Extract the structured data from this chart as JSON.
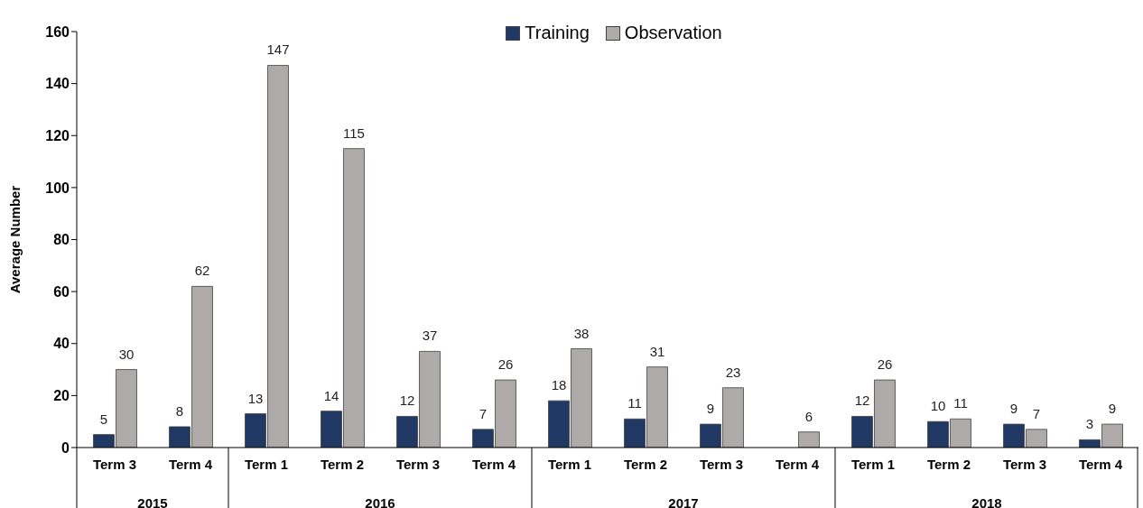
{
  "chart_data": {
    "type": "bar",
    "ylabel": "Average Number",
    "categories": [
      "Term 3",
      "Term 4",
      "Term 1",
      "Term 2",
      "Term 3",
      "Term 4",
      "Term 1",
      "Term 2",
      "Term 3",
      "Term 4",
      "Term 1",
      "Term 2",
      "Term 3",
      "Term 4"
    ],
    "series": [
      {
        "name": "Training",
        "color": "#203864",
        "values": [
          5,
          8,
          13,
          14,
          12,
          7,
          18,
          11,
          9,
          null,
          12,
          10,
          9,
          3
        ]
      },
      {
        "name": "Observation",
        "color": "#aeaaaa",
        "values": [
          30,
          62,
          147,
          115,
          37,
          26,
          38,
          31,
          23,
          6,
          26,
          11,
          7,
          9
        ]
      }
    ],
    "annotations": [
      "2015",
      "2016",
      "2017",
      "2018"
    ],
    "ylim": [
      0,
      160
    ],
    "yticks": [
      0,
      20,
      40,
      60,
      80,
      100,
      120,
      140,
      160
    ],
    "data_labels": true,
    "legend": "top",
    "grid": false
  }
}
